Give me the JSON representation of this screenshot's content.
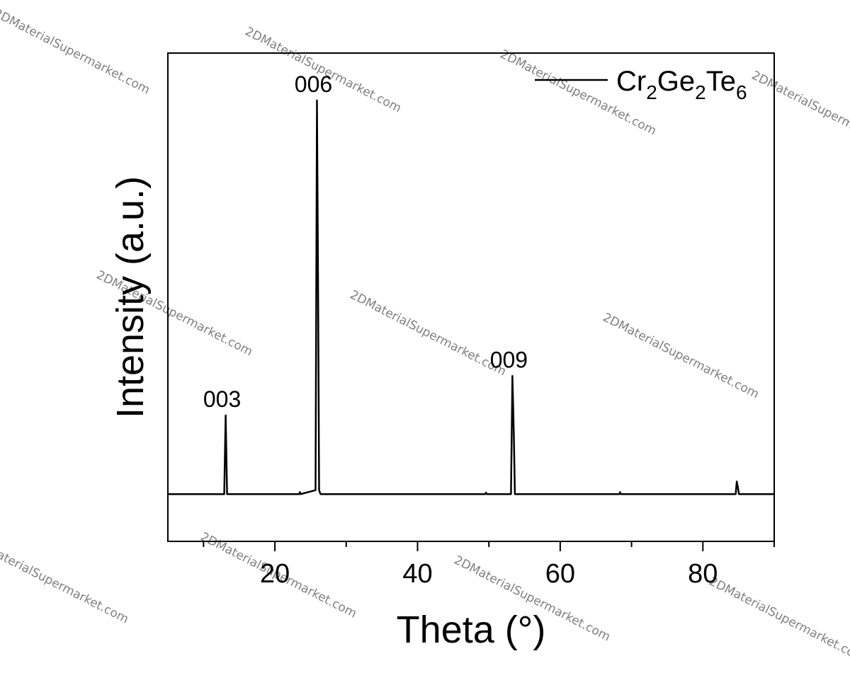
{
  "chart_data": {
    "type": "line",
    "xlabel": "Theta (°)",
    "ylabel": "Intensity (a.u.)",
    "xlim": [
      5,
      90
    ],
    "ylim": [
      -0.12,
      1.12
    ],
    "x_ticks": [
      20,
      40,
      60,
      80
    ],
    "y_ticks_shown": false,
    "grid": false,
    "legend": {
      "placement": "top-right",
      "entries": [
        {
          "base": "Cr",
          "sub1": "2",
          "mid": "Ge",
          "sub2": "2",
          "end": "Te",
          "sub3": "6"
        }
      ]
    },
    "series": [
      {
        "name": "Cr2Ge2Te6",
        "color": "#000000",
        "baseline": 0.0,
        "points": [
          [
            5,
            0.0
          ],
          [
            12.9,
            0.0
          ],
          [
            13.1,
            0.2
          ],
          [
            13.3,
            0.0
          ],
          [
            23.4,
            0.0
          ],
          [
            23.5,
            0.005
          ],
          [
            23.6,
            0.0
          ],
          [
            25.7,
            0.01
          ],
          [
            25.9,
            1.0
          ],
          [
            26.05,
            0.55
          ],
          [
            26.2,
            0.01
          ],
          [
            26.4,
            0.0
          ],
          [
            49.5,
            0.0
          ],
          [
            49.6,
            0.004
          ],
          [
            49.7,
            0.0
          ],
          [
            53.1,
            0.0
          ],
          [
            53.3,
            0.3
          ],
          [
            53.5,
            0.15
          ],
          [
            53.65,
            0.0
          ],
          [
            68.3,
            0.0
          ],
          [
            68.4,
            0.005
          ],
          [
            68.5,
            0.0
          ],
          [
            84.6,
            0.0
          ],
          [
            84.75,
            0.032
          ],
          [
            84.9,
            0.018
          ],
          [
            85.05,
            0.0
          ],
          [
            90,
            0.0
          ]
        ]
      }
    ],
    "annotations": [
      {
        "text": "003",
        "x": 13.1,
        "y": 0.2
      },
      {
        "text": "006",
        "x": 25.9,
        "y": 1.0
      },
      {
        "text": "009",
        "x": 53.3,
        "y": 0.3
      }
    ]
  },
  "watermark": {
    "text": "2DMaterialSupermarket.com"
  }
}
